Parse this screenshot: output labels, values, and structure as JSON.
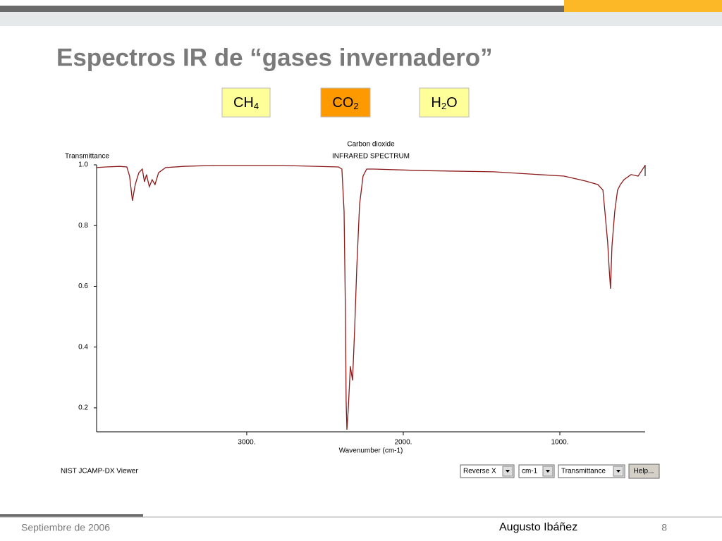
{
  "slide": {
    "title": "Espectros IR de “gases invernadero”",
    "buttons": [
      {
        "main": "CH",
        "sub": "4"
      },
      {
        "main": "CO",
        "sub": "2"
      },
      {
        "main": "H",
        "sub": "2",
        "tail": "O"
      }
    ],
    "viewer": {
      "name": "NIST JCAMP-DX Viewer",
      "selects": [
        "Reverse X",
        "cm-1",
        "Transmittance"
      ],
      "help": "Help..."
    },
    "footer": {
      "date": "Septiembre de 2006",
      "author": "Augusto Ibáñez",
      "page": "8"
    }
  },
  "chart_data": {
    "type": "line",
    "title": "Carbon dioxide",
    "subtitle": "INFRARED SPECTRUM",
    "y_label": "Transmittance",
    "x_label": "Wavenumber (cm-1)",
    "color": "#8b1a1a",
    "xlim": [
      3959,
      455
    ],
    "ylim": [
      0.121,
      1.0
    ],
    "xticks": [
      {
        "value": 3000,
        "label": "3000."
      },
      {
        "value": 2000,
        "label": "2000."
      },
      {
        "value": 1000,
        "label": "1000."
      }
    ],
    "yticks": [
      {
        "value": 1,
        "label": "1.0"
      },
      0.8,
      0.6,
      0.4,
      0.2
    ],
    "x": [
      3959,
      3901,
      3811,
      3766,
      3748,
      3730,
      3712,
      3689,
      3667,
      3653,
      3640,
      3622,
      3604,
      3586,
      3563,
      3518,
      3405,
      3225,
      2775,
      2414,
      2392,
      2378,
      2369,
      2365,
      2360,
      2351,
      2338,
      2324,
      2311,
      2297,
      2279,
      2257,
      2234,
      2189,
      1874,
      1423,
      973,
      838,
      757,
      725,
      712,
      694,
      685,
      676,
      667,
      649,
      631,
      613,
      590,
      545,
      500,
      477,
      455
    ],
    "values": [
      0.991,
      0.993,
      0.995,
      0.993,
      0.963,
      0.882,
      0.935,
      0.974,
      0.986,
      0.944,
      0.968,
      0.928,
      0.951,
      0.935,
      0.974,
      0.991,
      0.995,
      0.998,
      0.998,
      0.993,
      0.986,
      0.847,
      0.499,
      0.221,
      0.128,
      0.198,
      0.337,
      0.29,
      0.453,
      0.661,
      0.87,
      0.963,
      0.986,
      0.986,
      0.981,
      0.977,
      0.963,
      0.947,
      0.935,
      0.917,
      0.847,
      0.743,
      0.661,
      0.592,
      0.731,
      0.847,
      0.917,
      0.935,
      0.951,
      0.968,
      0.963,
      0.981,
      0.998
    ]
  }
}
